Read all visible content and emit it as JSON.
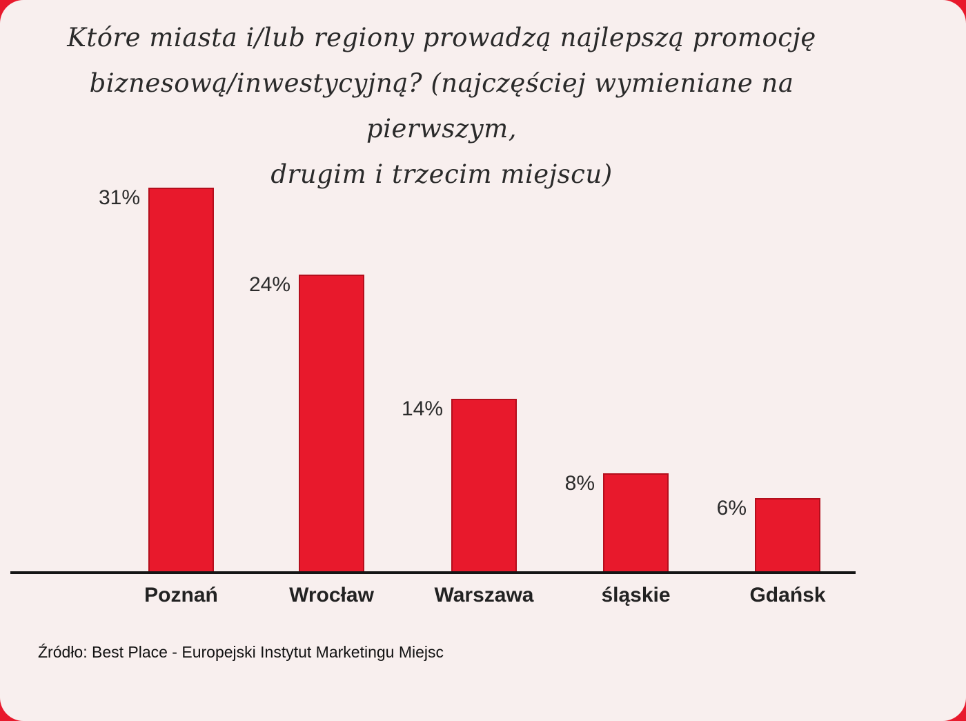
{
  "chart_data": {
    "type": "bar",
    "title": "Które miasta i/lub regiony prowadzą najlepszą promocję biznesową/inwestycyjną? (najczęściej wymieniane na pierwszym, drugim i trzecim miejscu)",
    "title_lines": [
      "Które miasta i/lub regiony prowadzą najlepszą promocję",
      "biznesową/inwestycyjną? (najczęściej wymieniane na pierwszym,",
      "drugim i trzecim miejscu)"
    ],
    "categories": [
      "Poznań",
      "Wrocław",
      "Warszawa",
      "śląskie",
      "Gdańsk"
    ],
    "values": [
      31,
      24,
      14,
      8,
      6
    ],
    "value_labels": [
      "31%",
      "24%",
      "14%",
      "8%",
      "6%"
    ],
    "xlabel": "",
    "ylabel": "",
    "ylim": [
      0,
      33
    ],
    "grid": false,
    "legend": "none",
    "bar_color": "#e8192c",
    "background_color": "#f8efee"
  },
  "source": "Źródło: Best Place - Europejski Instytut Marketingu Miejsc"
}
